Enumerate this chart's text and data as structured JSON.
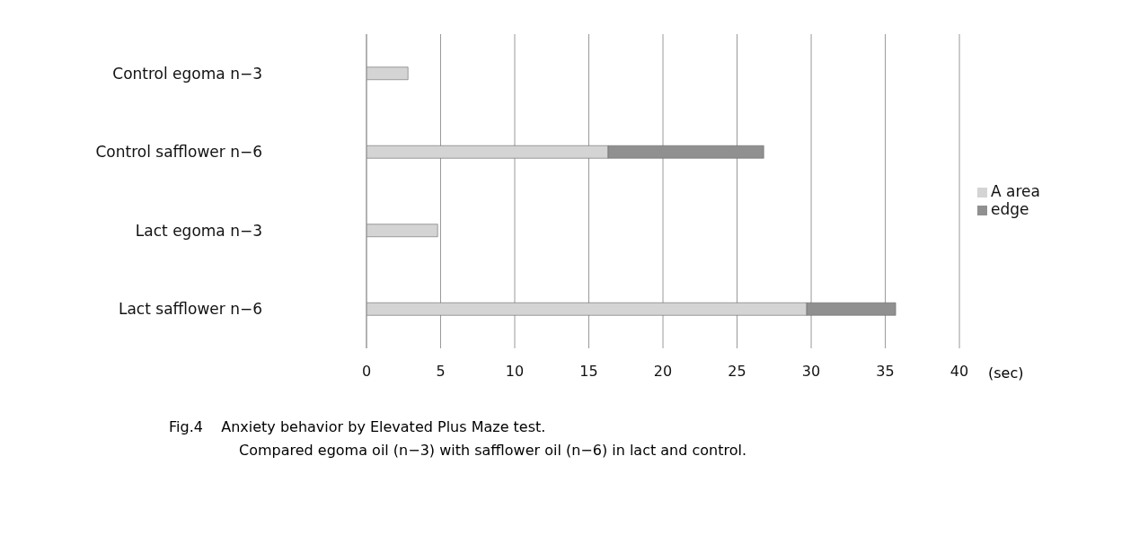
{
  "chart_data": {
    "type": "bar",
    "orientation": "horizontal",
    "stacked": true,
    "categories": [
      "Control  egoma  n−3",
      "Control  safflower  n−6",
      "Lact  egoma  n−3",
      "Lact  safflower  n−6"
    ],
    "series": [
      {
        "name": "A area",
        "color": "#d4d4d4",
        "values": [
          2.8,
          16.3,
          4.8,
          29.7
        ]
      },
      {
        "name": "edge",
        "color": "#909090",
        "values": [
          null,
          10.5,
          null,
          6.0
        ]
      }
    ],
    "xlim": [
      0,
      40
    ],
    "xticks": [
      0,
      5,
      10,
      15,
      20,
      25,
      30,
      35,
      40
    ],
    "xlabel": "(sec)",
    "grid": "x",
    "legend": "right",
    "annotations": [
      "Fig.4    Anxiety behavior by Elevated Plus Maze test.",
      "Compared egoma oil (n−3) with safflower oil (n−6) in lact and control."
    ]
  }
}
